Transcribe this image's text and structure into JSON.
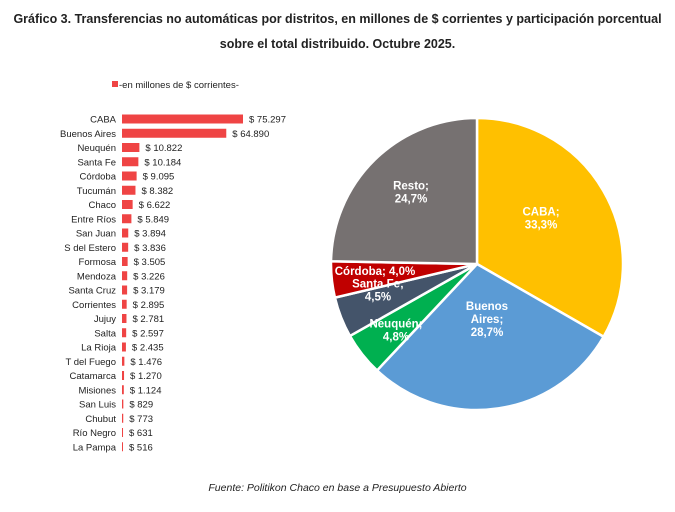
{
  "title_line1": "Gráfico 3. Transferencias no automáticas por distritos, en millones de $ corrientes y participación porcentual",
  "title_line2": "sobre el total distribuido. Octubre 2025.",
  "source": "Fuente: Politikon Chaco en base a Presupuesto Abierto",
  "colors": {
    "bar": "#ef4444",
    "caba": "#ffc000",
    "buenos_aires": "#5b9bd5",
    "neuquen": "#00b050",
    "santa_fe": "#44546a",
    "cordoba": "#c00000",
    "resto": "#767171"
  },
  "chart_data": [
    {
      "type": "bar",
      "orientation": "horizontal",
      "legend": "-en millones de $ corrientes-",
      "categories": [
        "CABA",
        "Buenos Aires",
        "Neuquén",
        "Santa Fe",
        "Córdoba",
        "Tucumán",
        "Chaco",
        "Entre Ríos",
        "San Juan",
        "S del Estero",
        "Formosa",
        "Mendoza",
        "Santa Cruz",
        "Corrientes",
        "Jujuy",
        "Salta",
        "La Rioja",
        "T del Fuego",
        "Catamarca",
        "Misiones",
        "San Luis",
        "Chubut",
        "Río Negro",
        "La Pampa"
      ],
      "values": [
        75297,
        64890,
        10822,
        10184,
        9095,
        8382,
        6622,
        5849,
        3894,
        3836,
        3505,
        3226,
        3179,
        2895,
        2781,
        2597,
        2435,
        1476,
        1270,
        1124,
        829,
        773,
        631,
        516
      ],
      "labels": [
        "$ 75.297",
        "$ 64.890",
        "$ 10.822",
        "$ 10.184",
        "$ 9.095",
        "$ 8.382",
        "$ 6.622",
        "$ 5.849",
        "$ 3.894",
        "$ 3.836",
        "$ 3.505",
        "$ 3.226",
        "$ 3.179",
        "$ 2.895",
        "$ 2.781",
        "$ 2.597",
        "$ 2.435",
        "$ 1.476",
        "$ 1.270",
        "$ 1.124",
        "$ 829",
        "$ 773",
        "$ 631",
        "$ 516"
      ]
    },
    {
      "type": "pie",
      "slices": [
        {
          "name": "CABA",
          "value": 33.3,
          "label_lines": [
            "CABA;",
            "33,3%"
          ],
          "color": "#ffc000",
          "text_color": "#ffffff"
        },
        {
          "name": "Buenos Aires",
          "value": 28.7,
          "label_lines": [
            "Buenos",
            "Aires;",
            "28,7%"
          ],
          "color": "#5b9bd5",
          "text_color": "#ffffff"
        },
        {
          "name": "Neuquén",
          "value": 4.8,
          "label_lines": [
            "Neuquén;",
            "4,8%"
          ],
          "color": "#00b050",
          "text_color": "#ffffff"
        },
        {
          "name": "Santa Fe",
          "value": 4.5,
          "label_lines": [
            "Santa Fe;",
            "4,5%"
          ],
          "color": "#44546a",
          "text_color": "#ffffff"
        },
        {
          "name": "Córdoba",
          "value": 4.0,
          "label_lines": [
            "Córdoba; 4,0%"
          ],
          "color": "#c00000",
          "text_color": "#ffffff"
        },
        {
          "name": "Resto",
          "value": 24.7,
          "label_lines": [
            "Resto;",
            "24,7%"
          ],
          "color": "#767171",
          "text_color": "#ffffff"
        }
      ]
    }
  ]
}
